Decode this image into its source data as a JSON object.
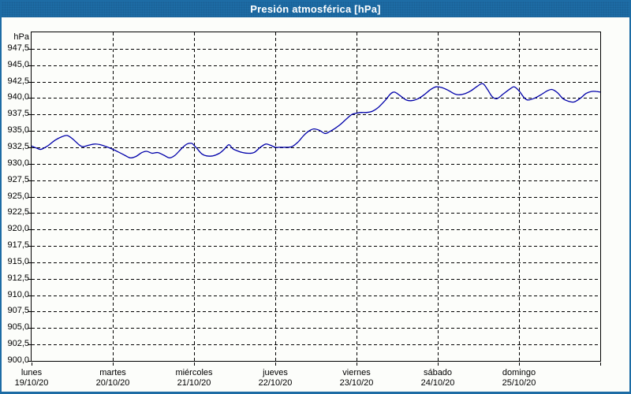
{
  "window": {
    "title": "Presión atmosférica [hPa]"
  },
  "colors": {
    "titlebar": "#1d6ca5",
    "frame_border": "#1d6ca5",
    "background": "#fcfdfa",
    "line": "#0000aa",
    "grid": "#000000",
    "text": "#000000",
    "title_text": "#ffffff"
  },
  "chart_data": {
    "type": "line",
    "title": "Presión atmosférica [hPa]",
    "ylabel": "hPa",
    "xlabel": "",
    "ylim": [
      900,
      950
    ],
    "ytick_step": 2.5,
    "ytick_labels": [
      "900,0",
      "902,5",
      "905,0",
      "907,5",
      "910,0",
      "912,5",
      "915,0",
      "917,5",
      "920,0",
      "922,5",
      "925,0",
      "927,5",
      "930,0",
      "932,5",
      "935,0",
      "937,5",
      "940,0",
      "942,5",
      "945,0",
      "947,5"
    ],
    "grid": true,
    "x_unit_hours_total": 168,
    "days": [
      {
        "name": "lunes",
        "date": "19/10/20"
      },
      {
        "name": "martes",
        "date": "20/10/20"
      },
      {
        "name": "miércoles",
        "date": "21/10/20"
      },
      {
        "name": "jueves",
        "date": "22/10/20"
      },
      {
        "name": "viernes",
        "date": "23/10/20"
      },
      {
        "name": "sábado",
        "date": "24/10/20"
      },
      {
        "name": "domingo",
        "date": "25/10/20"
      }
    ],
    "series": [
      {
        "name": "Presión atmosférica",
        "color": "#0000aa",
        "points": [
          [
            0,
            932.7
          ],
          [
            1.4,
            932.4
          ],
          [
            2.8,
            932.2
          ],
          [
            4.7,
            932.7
          ],
          [
            7,
            933.6
          ],
          [
            8.9,
            934.1
          ],
          [
            10.5,
            934.3
          ],
          [
            12.1,
            933.8
          ],
          [
            14,
            932.9
          ],
          [
            15.1,
            932.6
          ],
          [
            16.8,
            932.8
          ],
          [
            18.6,
            933.0
          ],
          [
            20.3,
            932.9
          ],
          [
            22.1,
            932.6
          ],
          [
            24,
            932.2
          ],
          [
            25.6,
            931.8
          ],
          [
            27.5,
            931.3
          ],
          [
            29.1,
            930.9
          ],
          [
            30.8,
            931.1
          ],
          [
            32.6,
            931.7
          ],
          [
            34,
            931.9
          ],
          [
            35.6,
            931.6
          ],
          [
            37.3,
            931.7
          ],
          [
            39.1,
            931.3
          ],
          [
            40.8,
            930.9
          ],
          [
            42.4,
            931.3
          ],
          [
            44.3,
            932.3
          ],
          [
            45.9,
            933.0
          ],
          [
            47.3,
            933.1
          ],
          [
            48,
            932.8
          ],
          [
            48.9,
            932.3
          ],
          [
            50.3,
            931.5
          ],
          [
            51.7,
            931.2
          ],
          [
            53.6,
            931.2
          ],
          [
            55.5,
            931.6
          ],
          [
            56.9,
            932.2
          ],
          [
            58.3,
            932.9
          ],
          [
            59.4,
            932.3
          ],
          [
            60.6,
            932.0
          ],
          [
            62.4,
            931.7
          ],
          [
            64.1,
            931.6
          ],
          [
            65.7,
            931.7
          ],
          [
            67.6,
            932.5
          ],
          [
            69.2,
            933.0
          ],
          [
            70.6,
            932.8
          ],
          [
            72,
            932.5
          ],
          [
            73.4,
            932.5
          ],
          [
            75,
            932.5
          ],
          [
            76.9,
            932.6
          ],
          [
            78.7,
            933.3
          ],
          [
            80.4,
            934.3
          ],
          [
            82,
            935.0
          ],
          [
            83.4,
            935.3
          ],
          [
            85,
            935.1
          ],
          [
            86.7,
            934.6
          ],
          [
            88.1,
            934.9
          ],
          [
            89.7,
            935.4
          ],
          [
            91.3,
            936.0
          ],
          [
            93.2,
            936.9
          ],
          [
            94.6,
            937.5
          ],
          [
            96,
            937.7
          ],
          [
            97.4,
            937.8
          ],
          [
            99,
            937.8
          ],
          [
            100.7,
            938.0
          ],
          [
            102.5,
            938.6
          ],
          [
            104.4,
            939.6
          ],
          [
            106,
            940.6
          ],
          [
            107.2,
            940.9
          ],
          [
            108.8,
            940.4
          ],
          [
            110.7,
            939.7
          ],
          [
            112.3,
            939.6
          ],
          [
            114.2,
            939.9
          ],
          [
            116,
            940.5
          ],
          [
            117.9,
            941.3
          ],
          [
            119.5,
            941.7
          ],
          [
            121.2,
            941.6
          ],
          [
            123,
            941.2
          ],
          [
            125.1,
            940.6
          ],
          [
            126.5,
            940.5
          ],
          [
            128.2,
            940.7
          ],
          [
            129.8,
            941.1
          ],
          [
            131.7,
            941.8
          ],
          [
            133.3,
            942.2
          ],
          [
            134.7,
            941.3
          ],
          [
            136.1,
            940.2
          ],
          [
            137.5,
            939.9
          ],
          [
            139.3,
            940.6
          ],
          [
            141.4,
            941.4
          ],
          [
            142.6,
            941.7
          ],
          [
            144,
            941.1
          ],
          [
            145.6,
            940.0
          ],
          [
            146.8,
            939.7
          ],
          [
            148.7,
            940.0
          ],
          [
            150.5,
            940.5
          ],
          [
            152.4,
            941.1
          ],
          [
            153.8,
            941.3
          ],
          [
            155.4,
            940.8
          ],
          [
            157,
            939.9
          ],
          [
            158.7,
            939.5
          ],
          [
            160.3,
            939.4
          ],
          [
            162.2,
            940.0
          ],
          [
            163.8,
            940.7
          ],
          [
            165.4,
            941.0
          ],
          [
            166.8,
            941.0
          ],
          [
            168,
            940.9
          ]
        ]
      }
    ]
  }
}
